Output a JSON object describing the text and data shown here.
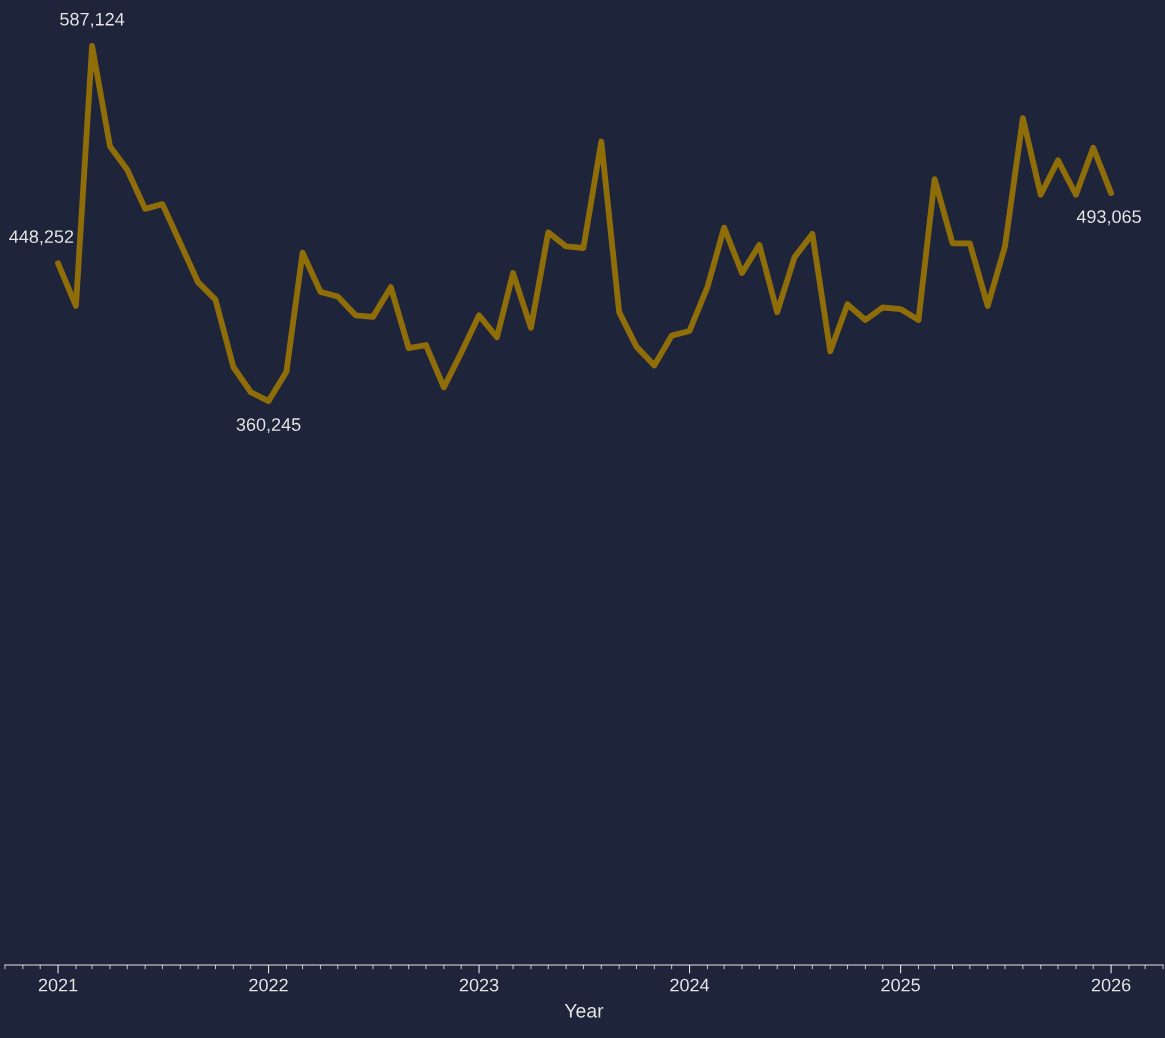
{
  "chart_data": {
    "type": "line",
    "xlabel": "Year",
    "x": [
      "2021-01",
      "2021-02",
      "2021-03",
      "2021-04",
      "2021-05",
      "2021-06",
      "2021-07",
      "2021-08",
      "2021-09",
      "2021-10",
      "2021-11",
      "2021-12",
      "2022-01",
      "2022-02",
      "2022-03",
      "2022-04",
      "2022-05",
      "2022-06",
      "2022-07",
      "2022-08",
      "2022-09",
      "2022-10",
      "2022-11",
      "2022-12",
      "2023-01",
      "2023-02",
      "2023-03",
      "2023-04",
      "2023-05",
      "2023-06",
      "2023-07",
      "2023-08",
      "2023-09",
      "2023-10",
      "2023-11",
      "2023-12",
      "2024-01",
      "2024-02",
      "2024-03",
      "2024-04",
      "2024-05",
      "2024-06",
      "2024-07",
      "2024-08",
      "2024-09",
      "2024-10",
      "2024-11",
      "2024-12",
      "2025-01",
      "2025-02",
      "2025-03",
      "2025-04",
      "2025-05",
      "2025-06",
      "2025-07",
      "2025-08",
      "2025-09",
      "2025-10",
      "2025-11",
      "2025-12",
      "2026-01"
    ],
    "series": [
      {
        "color": "#8f6e0a",
        "values": [
          448252,
          421000,
          587124,
          523000,
          508000,
          483000,
          486000,
          461000,
          436000,
          425000,
          382000,
          366000,
          360245,
          379000,
          455000,
          430000,
          427000,
          415000,
          414000,
          433000,
          394000,
          396000,
          369000,
          391000,
          415000,
          401000,
          442000,
          407000,
          468000,
          459000,
          458000,
          526000,
          417000,
          395000,
          383000,
          402000,
          405000,
          433000,
          471000,
          442000,
          460000,
          417000,
          452000,
          467000,
          392000,
          422000,
          412000,
          420000,
          419000,
          412000,
          502000,
          461000,
          461000,
          421000,
          459000,
          541000,
          492000,
          514000,
          492000,
          522000,
          493065
        ],
        "value_labels": [
          "448,252",
          null,
          "587,124",
          null,
          null,
          null,
          null,
          null,
          null,
          null,
          null,
          null,
          "360,245",
          null,
          null,
          null,
          null,
          null,
          null,
          null,
          null,
          null,
          null,
          null,
          null,
          null,
          null,
          null,
          null,
          null,
          null,
          null,
          null,
          null,
          null,
          null,
          null,
          null,
          null,
          null,
          null,
          null,
          null,
          null,
          null,
          null,
          null,
          null,
          null,
          null,
          null,
          null,
          null,
          null,
          null,
          null,
          null,
          null,
          null,
          null,
          "493,065"
        ]
      }
    ],
    "xlim": [
      "2020-10",
      "2026-04"
    ],
    "xticks": [
      {
        "value": "2021-01",
        "label": "2021"
      },
      {
        "value": "2022-01",
        "label": "2022"
      },
      {
        "value": "2023-01",
        "label": "2023"
      },
      {
        "value": "2024-01",
        "label": "2024"
      },
      {
        "value": "2025-01",
        "label": "2025"
      },
      {
        "value": "2026-01",
        "label": "2026"
      }
    ],
    "tick_labels": "x",
    "grid": false,
    "legend": false,
    "marker": "none",
    "line_style": "solid"
  }
}
